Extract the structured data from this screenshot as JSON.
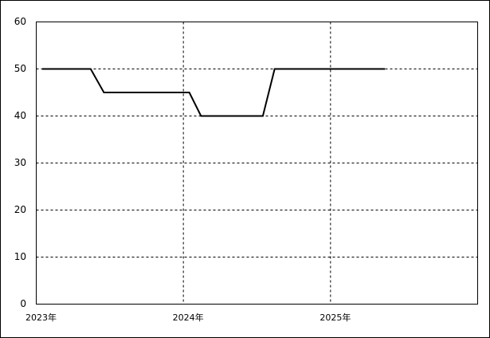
{
  "chart_data": {
    "type": "line",
    "x": [
      2023.04,
      2023.37,
      2023.46,
      2024.04,
      2024.12,
      2024.54,
      2024.62,
      2025.37
    ],
    "series": [
      {
        "color": "#000000",
        "values": [
          50,
          50,
          45,
          45,
          40,
          40,
          50,
          50
        ]
      }
    ],
    "xlim": [
      2023,
      2026
    ],
    "xticks": [
      {
        "value": 2023,
        "label": "2023年"
      },
      {
        "value": 2024,
        "label": "2024年"
      },
      {
        "value": 2025,
        "label": "2025年"
      }
    ],
    "ylim": [
      0,
      60
    ],
    "yticks": [
      0,
      10,
      20,
      30,
      40,
      50,
      60
    ],
    "grid": true
  }
}
